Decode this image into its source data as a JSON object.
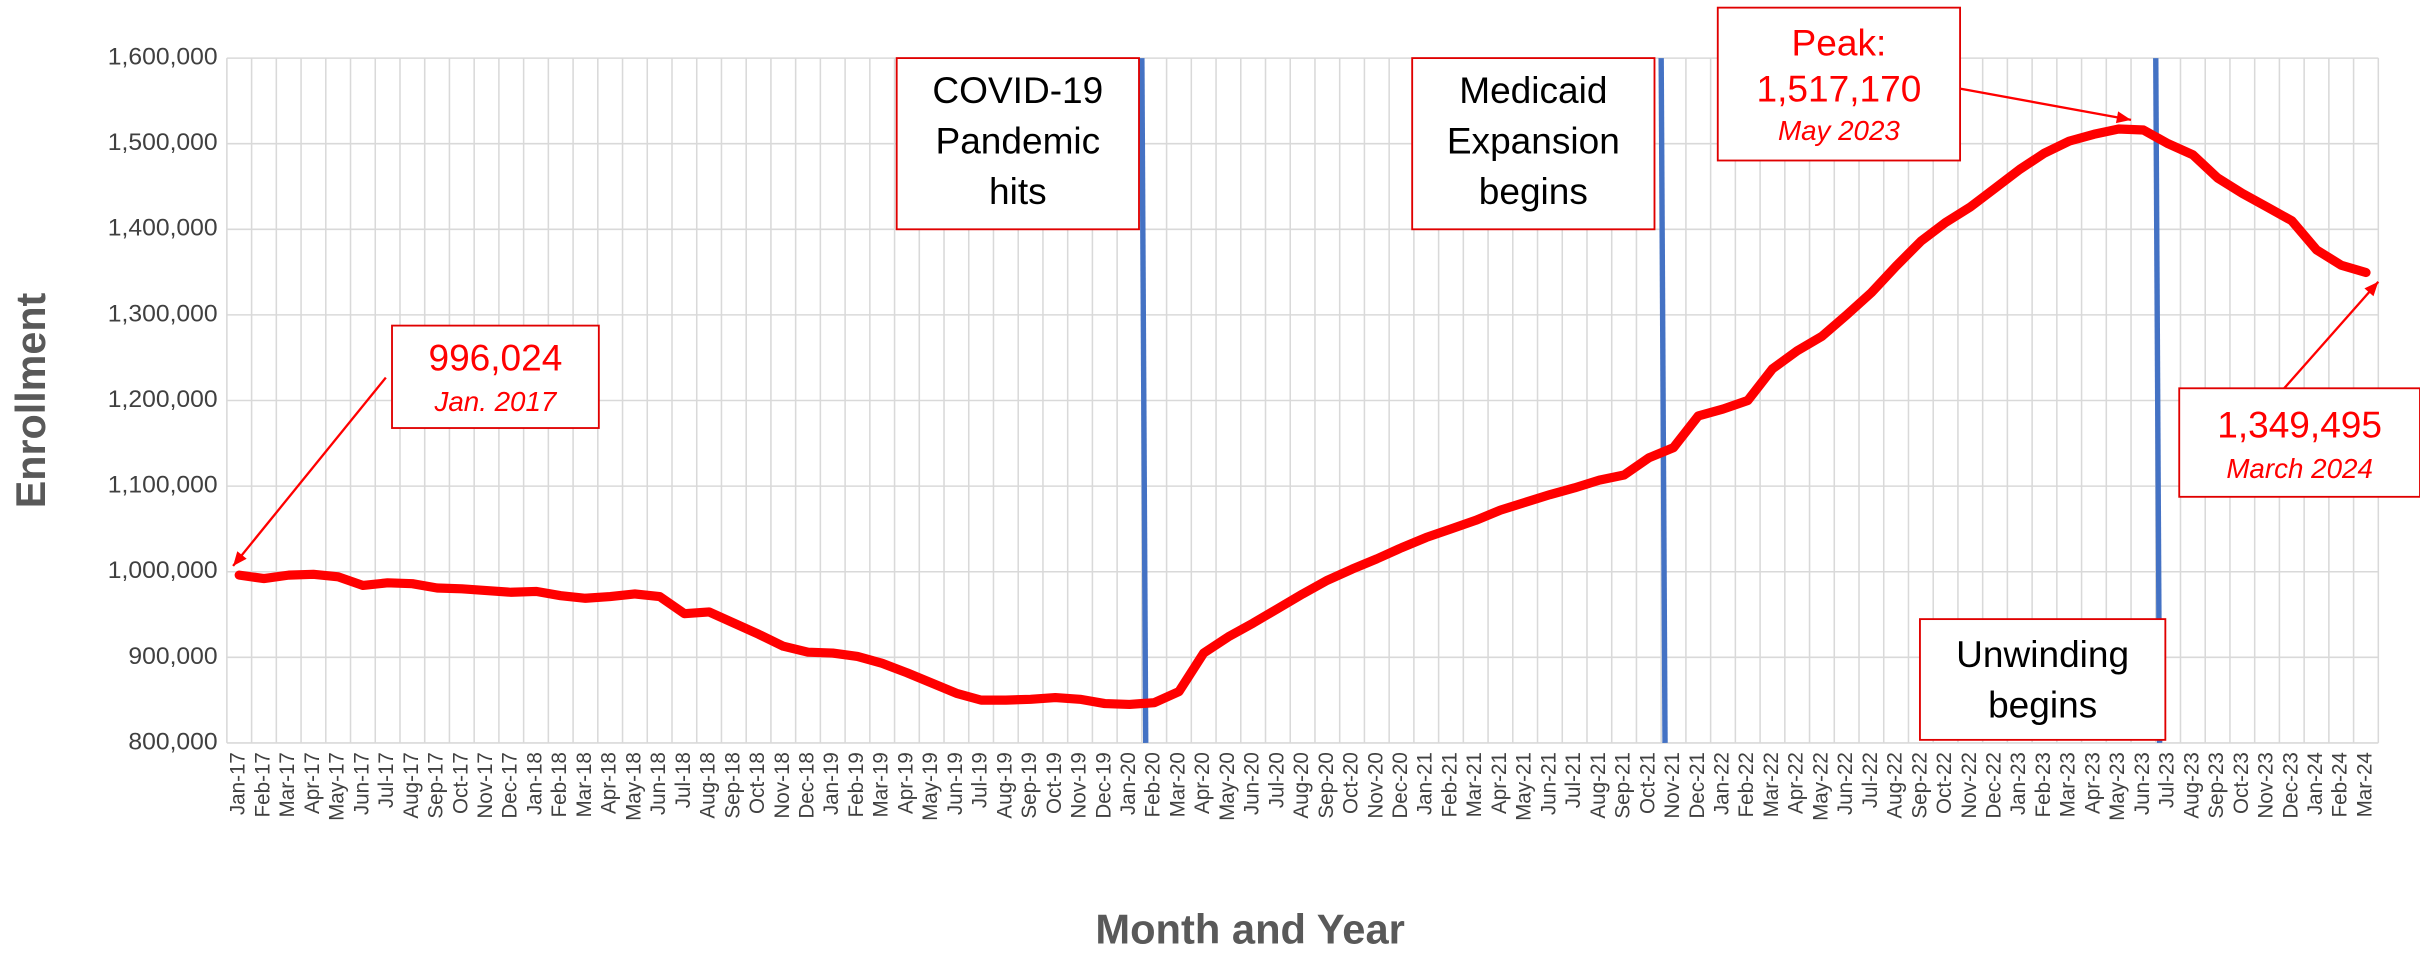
{
  "chart_data": {
    "type": "line",
    "y_label": "Enrollment",
    "x_label": "Month and Year",
    "color": "#ff0000",
    "grid": true,
    "ylim": [
      800000,
      1600000
    ],
    "yticks": [
      {
        "value": 800000,
        "label": "800,000"
      },
      {
        "value": 900000,
        "label": "900,000"
      },
      {
        "value": 1000000,
        "label": "1,000,000"
      },
      {
        "value": 1100000,
        "label": "1,100,000"
      },
      {
        "value": 1200000,
        "label": "1,200,000"
      },
      {
        "value": 1300000,
        "label": "1,300,000"
      },
      {
        "value": 1400000,
        "label": "1,400,000"
      },
      {
        "value": 1500000,
        "label": "1,500,000"
      },
      {
        "value": 1600000,
        "label": "1,600,000"
      }
    ],
    "categories": [
      "Jan-17",
      "Feb-17",
      "Mar-17",
      "Apr-17",
      "May-17",
      "Jun-17",
      "Jul-17",
      "Aug-17",
      "Sep-17",
      "Oct-17",
      "Nov-17",
      "Dec-17",
      "Jan-18",
      "Feb-18",
      "Mar-18",
      "Apr-18",
      "May-18",
      "Jun-18",
      "Jul-18",
      "Aug-18",
      "Sep-18",
      "Oct-18",
      "Nov-18",
      "Dec-18",
      "Jan-19",
      "Feb-19",
      "Mar-19",
      "Apr-19",
      "May-19",
      "Jun-19",
      "Jul-19",
      "Aug-19",
      "Sep-19",
      "Oct-19",
      "Nov-19",
      "Dec-19",
      "Jan-20",
      "Feb-20",
      "Mar-20",
      "Apr-20",
      "May-20",
      "Jun-20",
      "Jul-20",
      "Aug-20",
      "Sep-20",
      "Oct-20",
      "Nov-20",
      "Dec-20",
      "Jan-21",
      "Feb-21",
      "Mar-21",
      "Apr-21",
      "May-21",
      "Jun-21",
      "Jul-21",
      "Aug-21",
      "Sep-21",
      "Oct-21",
      "Nov-21",
      "Dec-21",
      "Jan-22",
      "Feb-22",
      "Mar-22",
      "Apr-22",
      "May-22",
      "Jun-22",
      "Jul-22",
      "Aug-22",
      "Sep-22",
      "Oct-22",
      "Nov-22",
      "Dec-22",
      "Jan-23",
      "Feb-23",
      "Mar-23",
      "Apr-23",
      "May-23",
      "Jun-23",
      "Jul-23",
      "Aug-23",
      "Sep-23",
      "Oct-23",
      "Nov-23",
      "Dec-23",
      "Jan-24",
      "Feb-24",
      "Mar-24"
    ],
    "values": [
      996024,
      992000,
      996000,
      997000,
      994000,
      984000,
      987000,
      986000,
      981000,
      980000,
      978000,
      976000,
      977000,
      972000,
      969000,
      971000,
      974000,
      971000,
      951000,
      953000,
      940000,
      927000,
      913000,
      906000,
      905000,
      901000,
      893000,
      882000,
      870000,
      858000,
      850000,
      850000,
      851000,
      853000,
      851000,
      846000,
      845000,
      847000,
      860000,
      905000,
      924000,
      940000,
      957000,
      974000,
      990000,
      1003000,
      1015000,
      1028000,
      1040000,
      1050000,
      1060000,
      1072000,
      1081000,
      1090000,
      1098000,
      1107000,
      1113000,
      1133000,
      1145000,
      1182000,
      1190000,
      1200000,
      1237000,
      1258000,
      1275000,
      1300000,
      1326000,
      1357000,
      1386000,
      1408000,
      1426000,
      1448000,
      1470000,
      1489000,
      1503000,
      1511000,
      1517170,
      1516000,
      1500000,
      1487000,
      1460000,
      1442000,
      1426000,
      1410000,
      1376000,
      1358000,
      1349495
    ],
    "value_labels": [
      "996,024",
      null,
      null,
      null,
      null,
      null,
      null,
      null,
      null,
      null,
      null,
      null,
      null,
      null,
      null,
      null,
      null,
      null,
      null,
      null,
      null,
      null,
      null,
      null,
      null,
      null,
      null,
      null,
      null,
      null,
      null,
      null,
      null,
      null,
      null,
      null,
      null,
      null,
      null,
      null,
      null,
      null,
      null,
      null,
      null,
      null,
      null,
      null,
      null,
      null,
      null,
      null,
      null,
      null,
      null,
      null,
      null,
      null,
      null,
      null,
      null,
      null,
      null,
      null,
      null,
      null,
      null,
      null,
      null,
      null,
      null,
      null,
      null,
      null,
      null,
      null,
      "1,517,170",
      null,
      null,
      null,
      null,
      null,
      null,
      null,
      null,
      null,
      "1,349,495"
    ],
    "value_notes": [
      "Jan. 2017",
      null,
      null,
      null,
      null,
      null,
      null,
      null,
      null,
      null,
      null,
      null,
      null,
      null,
      null,
      null,
      null,
      null,
      null,
      null,
      null,
      null,
      null,
      null,
      null,
      null,
      null,
      null,
      null,
      null,
      null,
      null,
      null,
      null,
      null,
      null,
      null,
      null,
      null,
      null,
      null,
      null,
      null,
      null,
      null,
      null,
      null,
      null,
      null,
      null,
      null,
      null,
      null,
      null,
      null,
      null,
      null,
      null,
      null,
      null,
      null,
      null,
      null,
      null,
      null,
      null,
      null,
      null,
      null,
      null,
      null,
      null,
      null,
      null,
      null,
      null,
      "May 2023",
      null,
      null,
      null,
      null,
      null,
      null,
      null,
      null,
      null,
      "March 2024"
    ],
    "peak_label": "Peak:",
    "events": [
      {
        "category": "Feb-20",
        "lines": [
          "COVID-19",
          "Pandemic",
          "hits"
        ]
      },
      {
        "category": "Nov-21",
        "lines": [
          "Medicaid",
          "Expansion",
          "begins"
        ]
      },
      {
        "category": "Jul-23",
        "lines": [
          "Unwinding",
          "begins"
        ]
      }
    ]
  }
}
